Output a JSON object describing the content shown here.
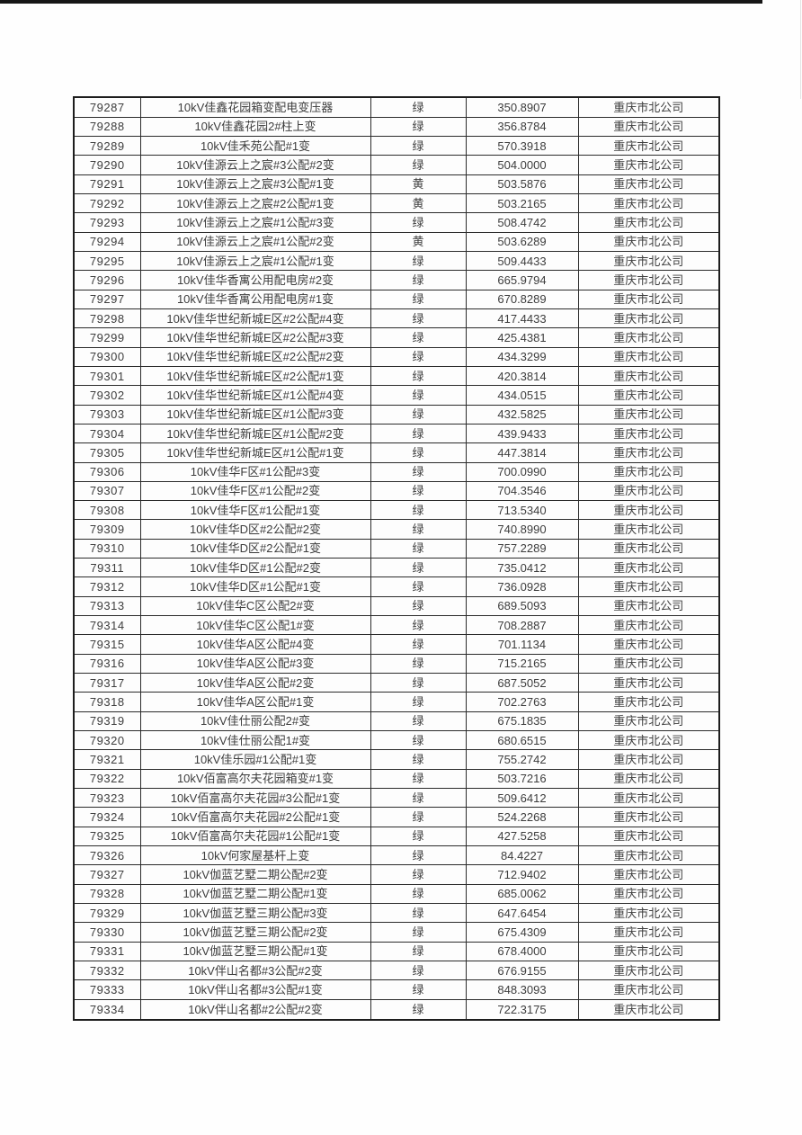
{
  "page": {
    "background": "#fefefe",
    "top_bar_color": "#161616",
    "border_color": "#2b2b2b",
    "text_color": "#3d3d3d"
  },
  "table": {
    "status_values_seen": [
      "绿",
      "黄"
    ],
    "rows": [
      {
        "id": "79287",
        "name": "10kV佳鑫花园箱变配电变压器",
        "status": "绿",
        "value": "350.8907",
        "company": "重庆市北公司"
      },
      {
        "id": "79288",
        "name": "10kV佳鑫花园2#柱上变",
        "status": "绿",
        "value": "356.8784",
        "company": "重庆市北公司"
      },
      {
        "id": "79289",
        "name": "10kV佳禾苑公配#1变",
        "status": "绿",
        "value": "570.3918",
        "company": "重庆市北公司"
      },
      {
        "id": "79290",
        "name": "10kV佳源云上之宸#3公配#2变",
        "status": "绿",
        "value": "504.0000",
        "company": "重庆市北公司"
      },
      {
        "id": "79291",
        "name": "10kV佳源云上之宸#3公配#1变",
        "status": "黄",
        "value": "503.5876",
        "company": "重庆市北公司"
      },
      {
        "id": "79292",
        "name": "10kV佳源云上之宸#2公配#1变",
        "status": "黄",
        "value": "503.2165",
        "company": "重庆市北公司"
      },
      {
        "id": "79293",
        "name": "10kV佳源云上之宸#1公配#3变",
        "status": "绿",
        "value": "508.4742",
        "company": "重庆市北公司"
      },
      {
        "id": "79294",
        "name": "10kV佳源云上之宸#1公配#2变",
        "status": "黄",
        "value": "503.6289",
        "company": "重庆市北公司"
      },
      {
        "id": "79295",
        "name": "10kV佳源云上之宸#1公配#1变",
        "status": "绿",
        "value": "509.4433",
        "company": "重庆市北公司"
      },
      {
        "id": "79296",
        "name": "10kV佳华香寓公用配电房#2变",
        "status": "绿",
        "value": "665.9794",
        "company": "重庆市北公司"
      },
      {
        "id": "79297",
        "name": "10kV佳华香寓公用配电房#1变",
        "status": "绿",
        "value": "670.8289",
        "company": "重庆市北公司"
      },
      {
        "id": "79298",
        "name": "10kV佳华世纪新城E区#2公配#4变",
        "status": "绿",
        "value": "417.4433",
        "company": "重庆市北公司"
      },
      {
        "id": "79299",
        "name": "10kV佳华世纪新城E区#2公配#3变",
        "status": "绿",
        "value": "425.4381",
        "company": "重庆市北公司"
      },
      {
        "id": "79300",
        "name": "10kV佳华世纪新城E区#2公配#2变",
        "status": "绿",
        "value": "434.3299",
        "company": "重庆市北公司"
      },
      {
        "id": "79301",
        "name": "10kV佳华世纪新城E区#2公配#1变",
        "status": "绿",
        "value": "420.3814",
        "company": "重庆市北公司"
      },
      {
        "id": "79302",
        "name": "10kV佳华世纪新城E区#1公配#4变",
        "status": "绿",
        "value": "434.0515",
        "company": "重庆市北公司"
      },
      {
        "id": "79303",
        "name": "10kV佳华世纪新城E区#1公配#3变",
        "status": "绿",
        "value": "432.5825",
        "company": "重庆市北公司"
      },
      {
        "id": "79304",
        "name": "10kV佳华世纪新城E区#1公配#2变",
        "status": "绿",
        "value": "439.9433",
        "company": "重庆市北公司"
      },
      {
        "id": "79305",
        "name": "10kV佳华世纪新城E区#1公配#1变",
        "status": "绿",
        "value": "447.3814",
        "company": "重庆市北公司"
      },
      {
        "id": "79306",
        "name": "10kV佳华F区#1公配#3变",
        "status": "绿",
        "value": "700.0990",
        "company": "重庆市北公司"
      },
      {
        "id": "79307",
        "name": "10kV佳华F区#1公配#2变",
        "status": "绿",
        "value": "704.3546",
        "company": "重庆市北公司"
      },
      {
        "id": "79308",
        "name": "10kV佳华F区#1公配#1变",
        "status": "绿",
        "value": "713.5340",
        "company": "重庆市北公司"
      },
      {
        "id": "79309",
        "name": "10kV佳华D区#2公配#2变",
        "status": "绿",
        "value": "740.8990",
        "company": "重庆市北公司"
      },
      {
        "id": "79310",
        "name": "10kV佳华D区#2公配#1变",
        "status": "绿",
        "value": "757.2289",
        "company": "重庆市北公司"
      },
      {
        "id": "79311",
        "name": "10kV佳华D区#1公配#2变",
        "status": "绿",
        "value": "735.0412",
        "company": "重庆市北公司"
      },
      {
        "id": "79312",
        "name": "10kV佳华D区#1公配#1变",
        "status": "绿",
        "value": "736.0928",
        "company": "重庆市北公司"
      },
      {
        "id": "79313",
        "name": "10kV佳华C区公配2#变",
        "status": "绿",
        "value": "689.5093",
        "company": "重庆市北公司"
      },
      {
        "id": "79314",
        "name": "10kV佳华C区公配1#变",
        "status": "绿",
        "value": "708.2887",
        "company": "重庆市北公司"
      },
      {
        "id": "79315",
        "name": "10kV佳华A区公配#4变",
        "status": "绿",
        "value": "701.1134",
        "company": "重庆市北公司"
      },
      {
        "id": "79316",
        "name": "10kV佳华A区公配#3变",
        "status": "绿",
        "value": "715.2165",
        "company": "重庆市北公司"
      },
      {
        "id": "79317",
        "name": "10kV佳华A区公配#2变",
        "status": "绿",
        "value": "687.5052",
        "company": "重庆市北公司"
      },
      {
        "id": "79318",
        "name": "10kV佳华A区公配#1变",
        "status": "绿",
        "value": "702.2763",
        "company": "重庆市北公司"
      },
      {
        "id": "79319",
        "name": "10kV佳仕丽公配2#变",
        "status": "绿",
        "value": "675.1835",
        "company": "重庆市北公司"
      },
      {
        "id": "79320",
        "name": "10kV佳仕丽公配1#变",
        "status": "绿",
        "value": "680.6515",
        "company": "重庆市北公司"
      },
      {
        "id": "79321",
        "name": "10kV佳乐园#1公配#1变",
        "status": "绿",
        "value": "755.2742",
        "company": "重庆市北公司"
      },
      {
        "id": "79322",
        "name": "10kV佰富高尔夫花园箱变#1变",
        "status": "绿",
        "value": "503.7216",
        "company": "重庆市北公司"
      },
      {
        "id": "79323",
        "name": "10kV佰富高尔夫花园#3公配#1变",
        "status": "绿",
        "value": "509.6412",
        "company": "重庆市北公司"
      },
      {
        "id": "79324",
        "name": "10kV佰富高尔夫花园#2公配#1变",
        "status": "绿",
        "value": "524.2268",
        "company": "重庆市北公司"
      },
      {
        "id": "79325",
        "name": "10kV佰富高尔夫花园#1公配#1变",
        "status": "绿",
        "value": "427.5258",
        "company": "重庆市北公司"
      },
      {
        "id": "79326",
        "name": "10kV何家屋基杆上变",
        "status": "绿",
        "value": "84.4227",
        "company": "重庆市北公司"
      },
      {
        "id": "79327",
        "name": "10kV伽蓝艺墅二期公配#2变",
        "status": "绿",
        "value": "712.9402",
        "company": "重庆市北公司"
      },
      {
        "id": "79328",
        "name": "10kV伽蓝艺墅二期公配#1变",
        "status": "绿",
        "value": "685.0062",
        "company": "重庆市北公司"
      },
      {
        "id": "79329",
        "name": "10kV伽蓝艺墅三期公配#3变",
        "status": "绿",
        "value": "647.6454",
        "company": "重庆市北公司"
      },
      {
        "id": "79330",
        "name": "10kV伽蓝艺墅三期公配#2变",
        "status": "绿",
        "value": "675.4309",
        "company": "重庆市北公司"
      },
      {
        "id": "79331",
        "name": "10kV伽蓝艺墅三期公配#1变",
        "status": "绿",
        "value": "678.4000",
        "company": "重庆市北公司"
      },
      {
        "id": "79332",
        "name": "10kV伴山名都#3公配#2变",
        "status": "绿",
        "value": "676.9155",
        "company": "重庆市北公司"
      },
      {
        "id": "79333",
        "name": "10kV伴山名都#3公配#1变",
        "status": "绿",
        "value": "848.3093",
        "company": "重庆市北公司"
      },
      {
        "id": "79334",
        "name": "10kV伴山名都#2公配#2变",
        "status": "绿",
        "value": "722.3175",
        "company": "重庆市北公司"
      }
    ]
  }
}
